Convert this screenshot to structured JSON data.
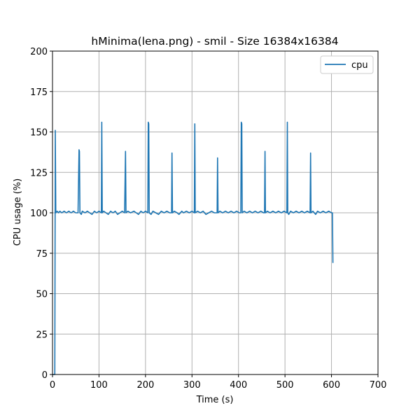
{
  "chart_data": {
    "type": "line",
    "title": "hMinima(lena.png) - smil - Size 16384x16384",
    "xlabel": "Time (s)",
    "ylabel": "CPU usage (%)",
    "xlim": [
      0,
      700
    ],
    "ylim": [
      0,
      200
    ],
    "xticks": [
      0,
      100,
      200,
      300,
      400,
      500,
      600,
      700
    ],
    "yticks": [
      0,
      25,
      50,
      75,
      100,
      125,
      150,
      175,
      200
    ],
    "grid": true,
    "legend": {
      "position": "top-right",
      "entries": [
        "cpu"
      ]
    },
    "series": [
      {
        "name": "cpu",
        "color": "#1f77b4",
        "points": [
          [
            0,
            0
          ],
          [
            5,
            0
          ],
          [
            6,
            151
          ],
          [
            7,
            100
          ],
          [
            10,
            101
          ],
          [
            13,
            100
          ],
          [
            16,
            101
          ],
          [
            20,
            100
          ],
          [
            25,
            101
          ],
          [
            30,
            100
          ],
          [
            35,
            101
          ],
          [
            40,
            100
          ],
          [
            45,
            101
          ],
          [
            50,
            100
          ],
          [
            55,
            100
          ],
          [
            57,
            139
          ],
          [
            58,
            138
          ],
          [
            59,
            100
          ],
          [
            62,
            99
          ],
          [
            64,
            101
          ],
          [
            70,
            100
          ],
          [
            75,
            101
          ],
          [
            80,
            100
          ],
          [
            85,
            99
          ],
          [
            90,
            101
          ],
          [
            95,
            100
          ],
          [
            100,
            101
          ],
          [
            105,
            100
          ],
          [
            106,
            156
          ],
          [
            107,
            100
          ],
          [
            110,
            101
          ],
          [
            115,
            100
          ],
          [
            120,
            99
          ],
          [
            125,
            101
          ],
          [
            130,
            100
          ],
          [
            135,
            101
          ],
          [
            140,
            99
          ],
          [
            145,
            100
          ],
          [
            150,
            101
          ],
          [
            155,
            100
          ],
          [
            157,
            138
          ],
          [
            158,
            100
          ],
          [
            162,
            101
          ],
          [
            168,
            100
          ],
          [
            175,
            101
          ],
          [
            180,
            100
          ],
          [
            185,
            99
          ],
          [
            190,
            101
          ],
          [
            195,
            100
          ],
          [
            200,
            101
          ],
          [
            205,
            100
          ],
          [
            206,
            156
          ],
          [
            207,
            155
          ],
          [
            208,
            100
          ],
          [
            212,
            99
          ],
          [
            216,
            101
          ],
          [
            222,
            100
          ],
          [
            228,
            99
          ],
          [
            234,
            101
          ],
          [
            240,
            100
          ],
          [
            246,
            101
          ],
          [
            252,
            100
          ],
          [
            256,
            100
          ],
          [
            257,
            137
          ],
          [
            258,
            100
          ],
          [
            262,
            101
          ],
          [
            268,
            100
          ],
          [
            272,
            99
          ],
          [
            278,
            101
          ],
          [
            282,
            100
          ],
          [
            288,
            101
          ],
          [
            294,
            100
          ],
          [
            300,
            101
          ],
          [
            305,
            100
          ],
          [
            306,
            155
          ],
          [
            307,
            100
          ],
          [
            312,
            101
          ],
          [
            318,
            100
          ],
          [
            324,
            101
          ],
          [
            330,
            99
          ],
          [
            336,
            100
          ],
          [
            342,
            101
          ],
          [
            348,
            100
          ],
          [
            354,
            100
          ],
          [
            355,
            134
          ],
          [
            356,
            100
          ],
          [
            360,
            101
          ],
          [
            366,
            100
          ],
          [
            372,
            101
          ],
          [
            378,
            100
          ],
          [
            384,
            101
          ],
          [
            390,
            100
          ],
          [
            396,
            101
          ],
          [
            402,
            100
          ],
          [
            405,
            100
          ],
          [
            406,
            156
          ],
          [
            407,
            155
          ],
          [
            408,
            100
          ],
          [
            412,
            101
          ],
          [
            418,
            100
          ],
          [
            424,
            101
          ],
          [
            430,
            100
          ],
          [
            436,
            101
          ],
          [
            442,
            100
          ],
          [
            448,
            101
          ],
          [
            454,
            100
          ],
          [
            456,
            100
          ],
          [
            457,
            138
          ],
          [
            458,
            100
          ],
          [
            462,
            101
          ],
          [
            468,
            100
          ],
          [
            474,
            101
          ],
          [
            480,
            100
          ],
          [
            486,
            101
          ],
          [
            492,
            100
          ],
          [
            498,
            101
          ],
          [
            504,
            100
          ],
          [
            505,
            156
          ],
          [
            506,
            100
          ],
          [
            508,
            99
          ],
          [
            512,
            101
          ],
          [
            518,
            100
          ],
          [
            524,
            101
          ],
          [
            530,
            100
          ],
          [
            536,
            101
          ],
          [
            542,
            100
          ],
          [
            548,
            101
          ],
          [
            554,
            100
          ],
          [
            555,
            137
          ],
          [
            556,
            100
          ],
          [
            560,
            101
          ],
          [
            566,
            99
          ],
          [
            570,
            101
          ],
          [
            576,
            100
          ],
          [
            582,
            101
          ],
          [
            588,
            100
          ],
          [
            594,
            101
          ],
          [
            600,
            100
          ],
          [
            602,
            100
          ],
          [
            603,
            69
          ]
        ]
      }
    ]
  }
}
